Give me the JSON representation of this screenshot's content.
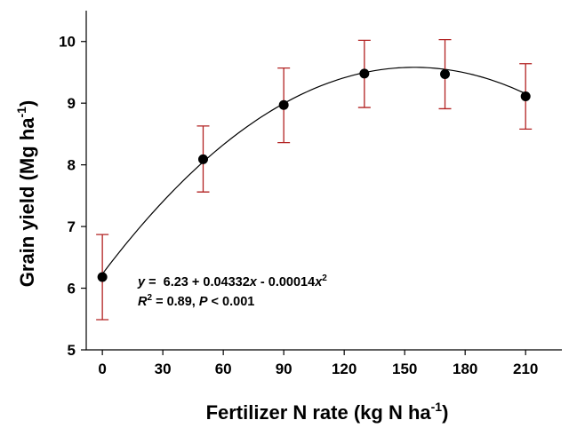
{
  "chart_data": {
    "type": "scatter",
    "title": "",
    "xlabel": "Fertilizer N rate (kg N ha",
    "xlabel_sup": "-1",
    "xlabel_suffix": ")",
    "ylabel": "Grain yield (Mg ha",
    "ylabel_sup": "-1",
    "ylabel_suffix": ")",
    "xlim": [
      -8,
      228
    ],
    "ylim": [
      5,
      10.5
    ],
    "x_ticks": [
      0,
      30,
      60,
      90,
      120,
      150,
      180,
      210
    ],
    "y_ticks": [
      5,
      6,
      7,
      8,
      9,
      10
    ],
    "x_tick_labels": [
      "0",
      "30",
      "60",
      "90",
      "120",
      "150",
      "180",
      "210"
    ],
    "y_tick_labels": [
      "5",
      "6",
      "7",
      "8",
      "9",
      "10"
    ],
    "grid": false,
    "series": [
      {
        "x": [
          0,
          50,
          90,
          130,
          170,
          210
        ],
        "y": [
          6.18,
          8.09,
          8.97,
          9.48,
          9.47,
          9.11
        ],
        "error_low": [
          5.49,
          7.56,
          8.36,
          8.93,
          8.91,
          8.58
        ],
        "error_high": [
          6.87,
          8.63,
          9.57,
          10.02,
          10.03,
          9.64
        ],
        "marker_color": "#000000",
        "error_color": "#b22222"
      }
    ],
    "fit": {
      "intercept": 6.23,
      "linear": 0.04332,
      "quadratic": -0.00014,
      "x_range": [
        0,
        210
      ],
      "color": "#000000"
    },
    "annotation": {
      "eq_y": "y",
      "eq_mid": " =  6.23 + 0.04332",
      "eq_x1": "x",
      "eq_rest": " - 0.00014",
      "eq_x2": "x",
      "eq_sup": "2",
      "r2_R": "R",
      "r2_sup": "2",
      "r2_rest": " = 0.89, ",
      "p_P": "P",
      "p_rest": " < 0.001"
    }
  }
}
